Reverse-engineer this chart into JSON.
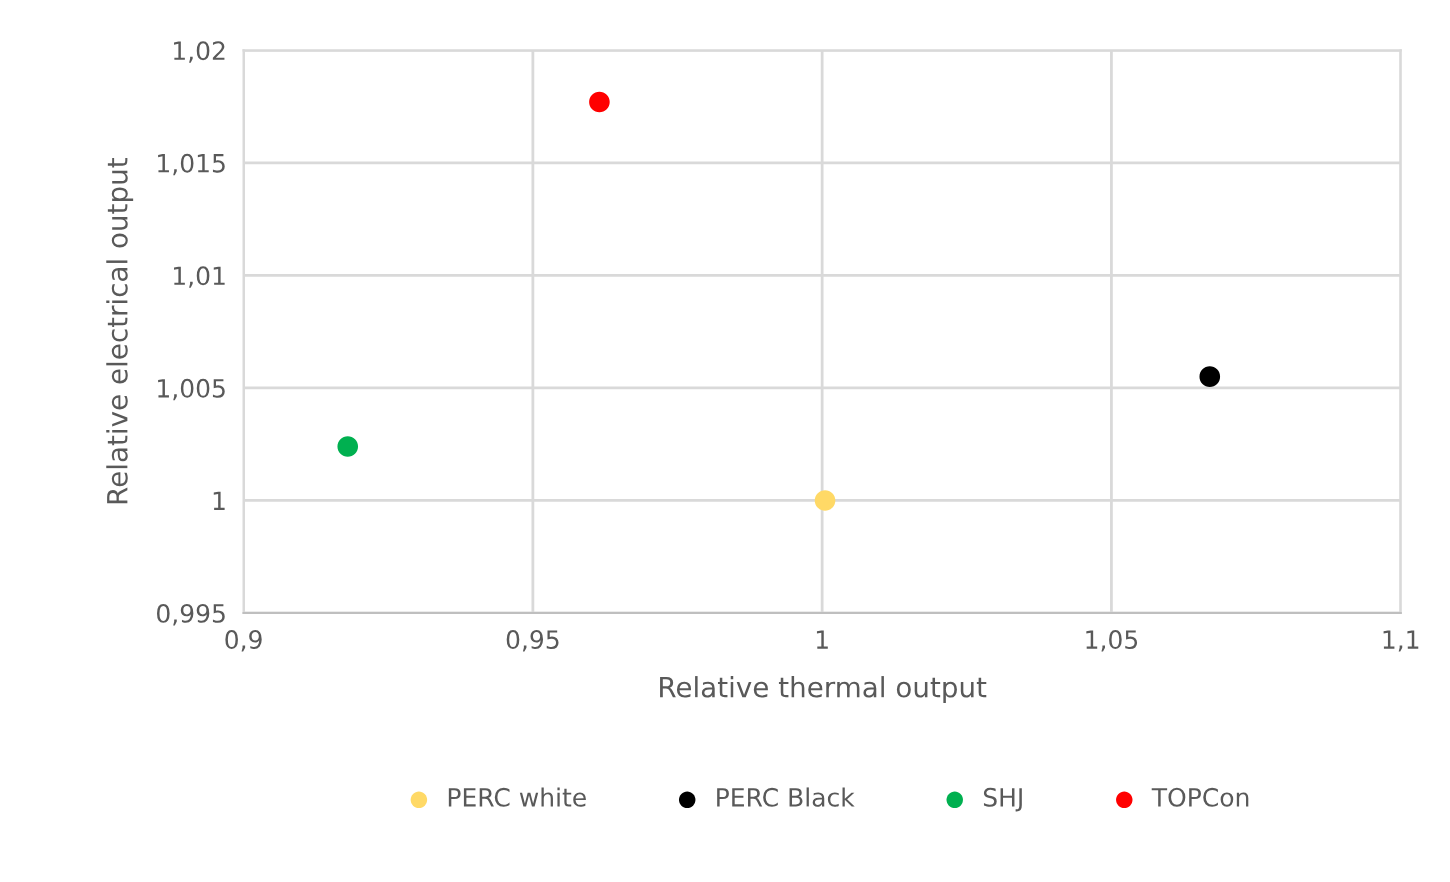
{
  "chart_data": {
    "type": "scatter",
    "xlabel": "Relative thermal output",
    "ylabel": "Relative electrical output",
    "xlim": [
      0.9,
      1.1
    ],
    "ylim": [
      0.995,
      1.02
    ],
    "xticks": [
      {
        "value": 0.9,
        "label": "0,9"
      },
      {
        "value": 0.95,
        "label": "0,95"
      },
      {
        "value": 1,
        "label": "1"
      },
      {
        "value": 1.05,
        "label": "1,05"
      },
      {
        "value": 1.1,
        "label": "1,1"
      }
    ],
    "yticks": [
      {
        "value": 0.995,
        "label": "0,995"
      },
      {
        "value": 1,
        "label": "1"
      },
      {
        "value": 1.005,
        "label": "1,005"
      },
      {
        "value": 1.01,
        "label": "1,01"
      },
      {
        "value": 1.015,
        "label": "1,015"
      },
      {
        "value": 1.02,
        "label": "1,02"
      }
    ],
    "grid": true,
    "legend": "bottom",
    "marker": "circle",
    "series": [
      {
        "name": "PERC white",
        "color": "#ffd966",
        "x": [
          1.0005
        ],
        "values": [
          1.0
        ]
      },
      {
        "name": "PERC Black",
        "color": "#000000",
        "x": [
          1.067
        ],
        "values": [
          1.0055
        ]
      },
      {
        "name": "SHJ",
        "color": "#00b050",
        "x": [
          0.918
        ],
        "values": [
          1.0024
        ]
      },
      {
        "name": "TOPCon",
        "color": "#ff0000",
        "x": [
          0.9615
        ],
        "values": [
          1.0177
        ]
      }
    ]
  }
}
